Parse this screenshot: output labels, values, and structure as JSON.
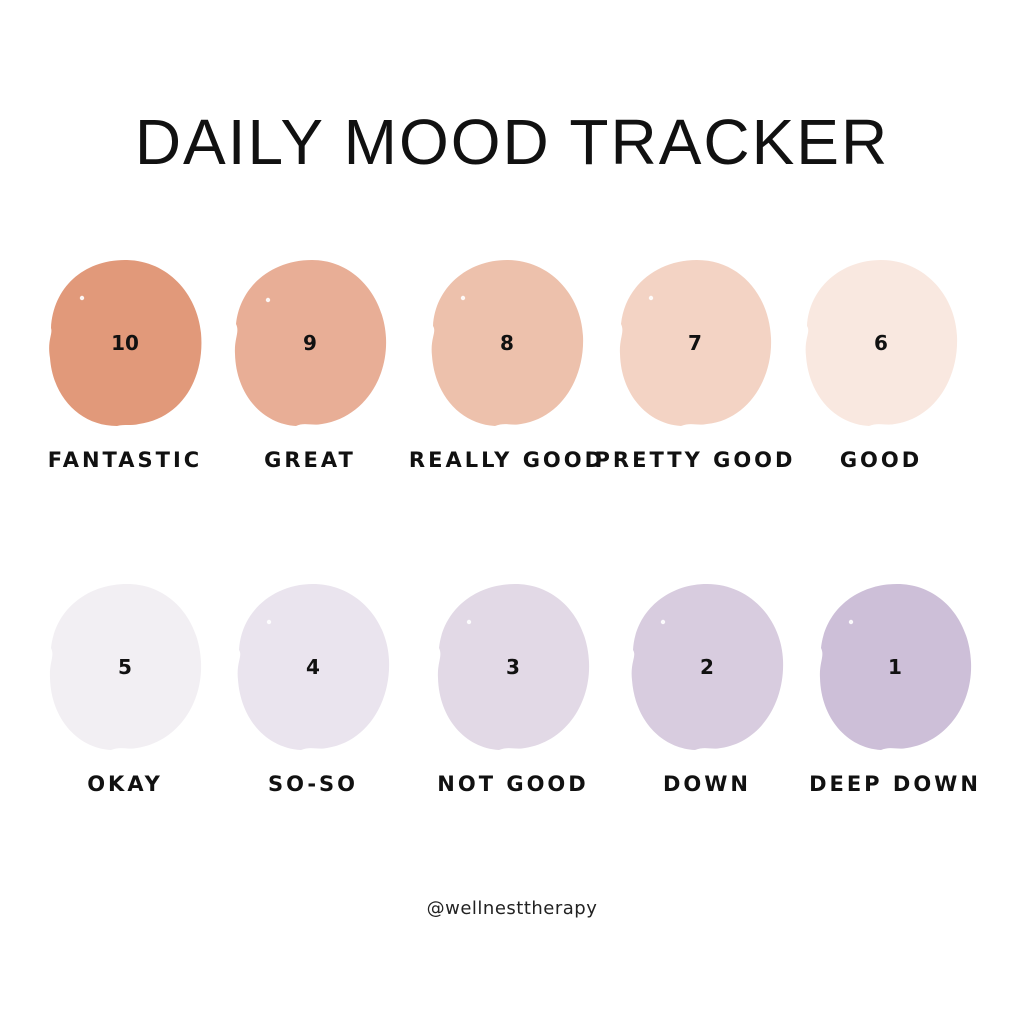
{
  "title": "DAILY MOOD TRACKER",
  "handle": "@wellnesttherapy",
  "moods": [
    {
      "score": "10",
      "label": "FANTASTIC",
      "color": "#E1997A"
    },
    {
      "score": "9",
      "label": "GREAT",
      "color": "#E8AE96"
    },
    {
      "score": "8",
      "label": "REALLY GOOD",
      "color": "#EDC1AC"
    },
    {
      "score": "7",
      "label": "PRETTY GOOD",
      "color": "#F3D3C4"
    },
    {
      "score": "6",
      "label": "GOOD",
      "color": "#F9E8E0"
    },
    {
      "score": "5",
      "label": "OKAY",
      "color": "#F2EFF3"
    },
    {
      "score": "4",
      "label": "SO-SO",
      "color": "#EAE4EE"
    },
    {
      "score": "3",
      "label": "NOT GOOD",
      "color": "#E2D9E6"
    },
    {
      "score": "2",
      "label": "DOWN",
      "color": "#D8CCDF"
    },
    {
      "score": "1",
      "label": "DEEP DOWN",
      "color": "#CDBFD8"
    }
  ]
}
